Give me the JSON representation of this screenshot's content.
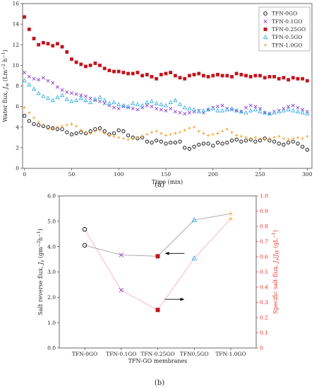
{
  "figure_labels": {
    "a": "(a)",
    "b": "(b)"
  },
  "chart_data": [
    {
      "type": "scatter",
      "panel": "(a)",
      "xlabel": "Time (min)",
      "ylabel": "Water flux, J_w (Lm⁻² h⁻¹)",
      "ylabel_parts": [
        "Water flux, ",
        "J",
        "w",
        " (Lm",
        "−2",
        " h",
        "−1",
        ")"
      ],
      "xlim": [
        -2,
        305
      ],
      "ylim": [
        0,
        16
      ],
      "xticks": [
        0,
        50,
        100,
        150,
        200,
        250,
        300
      ],
      "yticks": [
        0,
        2,
        4,
        6,
        8,
        10,
        12,
        14,
        16
      ],
      "legend_position": "top-right",
      "grid": false,
      "x": [
        0,
        5,
        10,
        15,
        20,
        25,
        30,
        35,
        40,
        45,
        50,
        55,
        60,
        65,
        70,
        75,
        80,
        85,
        90,
        95,
        100,
        105,
        110,
        115,
        120,
        125,
        130,
        135,
        140,
        145,
        150,
        155,
        160,
        165,
        170,
        175,
        180,
        185,
        190,
        195,
        200,
        205,
        210,
        215,
        220,
        225,
        230,
        235,
        240,
        245,
        250,
        255,
        260,
        265,
        270,
        275,
        280,
        285,
        290,
        295,
        300
      ],
      "series": [
        {
          "name": "TFN-0GO",
          "marker": "circle",
          "color": "#000000",
          "values": [
            5.1,
            4.6,
            4.3,
            4.2,
            4.1,
            4.0,
            3.9,
            3.8,
            3.8,
            3.5,
            3.3,
            3.4,
            3.5,
            3.4,
            3.6,
            3.8,
            3.9,
            3.6,
            3.3,
            3.4,
            3.7,
            3.6,
            3.2,
            3.0,
            2.9,
            3.0,
            2.6,
            2.5,
            2.7,
            2.6,
            2.4,
            2.5,
            2.5,
            2.6,
            2.0,
            1.9,
            2.1,
            2.3,
            2.4,
            2.4,
            2.2,
            2.5,
            2.4,
            2.5,
            2.7,
            2.8,
            2.6,
            2.7,
            2.8,
            2.6,
            2.7,
            2.9,
            2.7,
            2.6,
            2.4,
            2.3,
            2.5,
            2.6,
            2.4,
            2.1,
            1.8
          ]
        },
        {
          "name": "TFN-0.1GO",
          "marker": "x",
          "color": "#8b3fcf",
          "values": [
            9.3,
            8.9,
            8.7,
            8.6,
            8.8,
            8.5,
            8.3,
            7.9,
            7.6,
            7.4,
            7.3,
            7.2,
            7.1,
            7.0,
            6.8,
            6.6,
            6.5,
            6.3,
            6.1,
            5.9,
            5.8,
            6.0,
            5.9,
            5.8,
            5.7,
            5.9,
            6.1,
            6.0,
            5.8,
            5.7,
            5.6,
            5.8,
            5.5,
            5.4,
            5.3,
            5.4,
            5.5,
            5.6,
            5.4,
            5.7,
            5.9,
            6.0,
            6.1,
            5.8,
            5.7,
            5.6,
            5.5,
            5.9,
            6.1,
            6.0,
            5.8,
            5.4,
            5.3,
            5.5,
            5.6,
            5.8,
            6.0,
            6.1,
            5.9,
            5.7,
            5.5
          ]
        },
        {
          "name": "TFN-0.25GO",
          "marker": "square",
          "color": "#c0141c",
          "values": [
            14.7,
            13.5,
            12.6,
            12.0,
            12.2,
            12.1,
            11.9,
            12.1,
            11.8,
            11.3,
            10.6,
            10.3,
            10.1,
            9.9,
            10.0,
            10.2,
            10.0,
            9.7,
            9.5,
            9.4,
            9.4,
            9.3,
            9.2,
            9.2,
            9.3,
            9.0,
            9.1,
            8.9,
            8.7,
            9.1,
            9.2,
            9.3,
            9.0,
            8.8,
            8.7,
            9.0,
            9.1,
            9.2,
            9.0,
            8.9,
            9.0,
            9.1,
            9.0,
            9.0,
            8.9,
            9.2,
            9.1,
            9.0,
            8.9,
            9.0,
            9.0,
            8.8,
            8.9,
            8.9,
            8.7,
            8.8,
            8.6,
            8.8,
            8.7,
            8.7,
            8.5
          ]
        },
        {
          "name": "TFN-0.5GO",
          "marker": "triangle",
          "color": "#3ab0e6",
          "values": [
            8.5,
            8.1,
            7.7,
            7.3,
            7.0,
            6.8,
            6.6,
            6.9,
            7.1,
            6.7,
            6.5,
            6.6,
            6.8,
            6.6,
            6.4,
            6.7,
            6.9,
            6.6,
            6.3,
            6.4,
            6.2,
            6.1,
            6.0,
            6.3,
            6.2,
            6.1,
            6.4,
            6.5,
            6.3,
            6.2,
            6.1,
            6.4,
            6.6,
            6.2,
            5.9,
            5.8,
            5.7,
            5.5,
            5.6,
            5.7,
            5.8,
            5.6,
            5.6,
            5.7,
            5.8,
            5.6,
            5.5,
            5.4,
            5.6,
            5.7,
            5.5,
            5.4,
            5.3,
            5.4,
            5.5,
            5.6,
            5.7,
            5.6,
            5.5,
            5.4,
            5.3
          ]
        },
        {
          "name": "TFN-1.0GO",
          "marker": "plus",
          "color": "#f0a030",
          "values": [
            5.9,
            5.4,
            4.9,
            4.5,
            4.2,
            3.8,
            3.9,
            4.0,
            4.1,
            4.2,
            4.3,
            4.1,
            3.7,
            3.5,
            3.4,
            3.6,
            3.7,
            3.4,
            3.2,
            3.1,
            3.0,
            2.9,
            2.8,
            2.9,
            3.0,
            3.1,
            3.3,
            3.5,
            3.6,
            3.4,
            3.2,
            3.3,
            3.4,
            3.5,
            3.7,
            3.9,
            4.0,
            3.6,
            3.4,
            3.2,
            3.3,
            3.4,
            3.6,
            3.8,
            3.5,
            3.2,
            3.1,
            3.0,
            2.9,
            3.0,
            2.9,
            2.8,
            2.9,
            3.0,
            3.1,
            2.9,
            2.8,
            2.9,
            3.0,
            2.9,
            3.1
          ]
        }
      ]
    },
    {
      "type": "line",
      "panel": "(b)",
      "categories": [
        "TFN-0GO",
        "TFN-0.1GO",
        "TFN-0.25GO",
        "TFN0.5GO",
        "TFN-1.0GO"
      ],
      "xlabel": "TFN-GO membranes",
      "ylabel_left": "Salt reverse flux, Js (gm⁻²h⁻¹)",
      "ylabel_left_parts": [
        "Salt reverse flux, ",
        "J",
        "s",
        " (gm",
        "−2",
        "h",
        "−1",
        ")"
      ],
      "ylabel_right": "Specific salt flux, Js/Jw (gL⁻¹)",
      "ylabel_right_parts": [
        "Specific salt flux, ",
        "J",
        "s",
        "/",
        "J",
        "W",
        " (gL",
        "−1",
        ")"
      ],
      "ylim_left": [
        0,
        6
      ],
      "yticks_left": [
        "0.0",
        "1.0",
        "2.0",
        "3.0",
        "4.0",
        "5.0",
        "6.0"
      ],
      "ylim_right": [
        0,
        1
      ],
      "yticks_right": [
        "0",
        "0.1",
        "0.2",
        "0.3",
        "0.4",
        "0.5",
        "0.6",
        "0.7",
        "0.8",
        "0.9",
        "1.0"
      ],
      "grid": false,
      "series": [
        {
          "axis": "left",
          "color": "#999999",
          "values": [
            4.05,
            3.67,
            3.62,
            5.05,
            5.3
          ]
        },
        {
          "axis": "right",
          "color": "#f4a6c0",
          "values": [
            0.78,
            0.38,
            0.25,
            0.59,
            0.85
          ]
        }
      ],
      "markers": [
        {
          "shape": "circle",
          "color": "#000000"
        },
        {
          "shape": "x",
          "color": "#8b3fcf"
        },
        {
          "shape": "square",
          "color": "#c0141c"
        },
        {
          "shape": "triangle",
          "color": "#3ab0e6"
        },
        {
          "shape": "plus",
          "color": "#f0a030"
        }
      ]
    }
  ]
}
